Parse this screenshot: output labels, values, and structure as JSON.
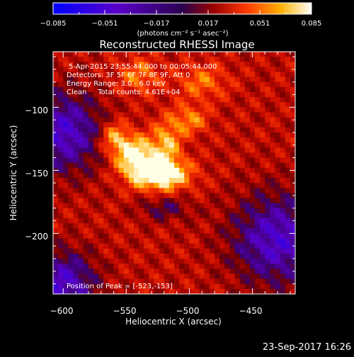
{
  "colorbar": {
    "tick_labels": [
      "−0.085",
      "−0.051",
      "−0.017",
      "0.017",
      "0.051",
      "0.085"
    ],
    "unit_label": "(photons cm⁻² s⁻¹ asec⁻²)"
  },
  "chart_data": {
    "type": "heatmap",
    "title": "Reconstructed RHESSI Image",
    "xlabel": "Heliocentric X (arcsec)",
    "ylabel": "Heliocentric Y (arcsec)",
    "xlim": [
      -608,
      -416
    ],
    "ylim": [
      -248,
      -56
    ],
    "x_ticks": [
      -600,
      -550,
      -500,
      -450
    ],
    "y_ticks": [
      -100,
      -150,
      -200
    ],
    "x_tick_labels": [
      "−600",
      "−550",
      "−500",
      "−450"
    ],
    "y_tick_labels": [
      "−100",
      "−150",
      "−200"
    ],
    "colorbar_range": [
      -0.085,
      0.085
    ],
    "colormap": "red-temperature",
    "peak": [
      -523,
      -153
    ],
    "sources": [
      {
        "x": -523,
        "y": -153,
        "amp": 1.0,
        "sx": 16,
        "sy": 9
      },
      {
        "x": -543,
        "y": -138,
        "amp": 0.82,
        "sx": 11,
        "sy": 11
      },
      {
        "x": -560,
        "y": -124,
        "amp": 0.55,
        "sx": 8,
        "sy": 9
      },
      {
        "x": -518,
        "y": -128,
        "amp": 0.55,
        "sx": 8,
        "sy": 12
      },
      {
        "x": -500,
        "y": -110,
        "amp": 0.45,
        "sx": 10,
        "sy": 8
      },
      {
        "x": -540,
        "y": -75,
        "amp": 0.4,
        "sx": 12,
        "sy": 10
      },
      {
        "x": -490,
        "y": -80,
        "amp": 0.38,
        "sx": 14,
        "sy": 10
      }
    ],
    "annotations": [
      "5-Apr-2015 23:55:44.000 to 00:05:44.000",
      "Detectors: 3F 5F 6F 7F 8F 9F, Att 0",
      "Energy Range: 3.0 - 6.0 keV",
      "Clean     Total counts: 4.61E+04"
    ],
    "peak_label": "Position of Peak = [-523,-153]"
  },
  "footer": {
    "date": "23-Sep-2017 16:26"
  },
  "colors": {
    "background": "#000000",
    "text": "#ffffff"
  }
}
